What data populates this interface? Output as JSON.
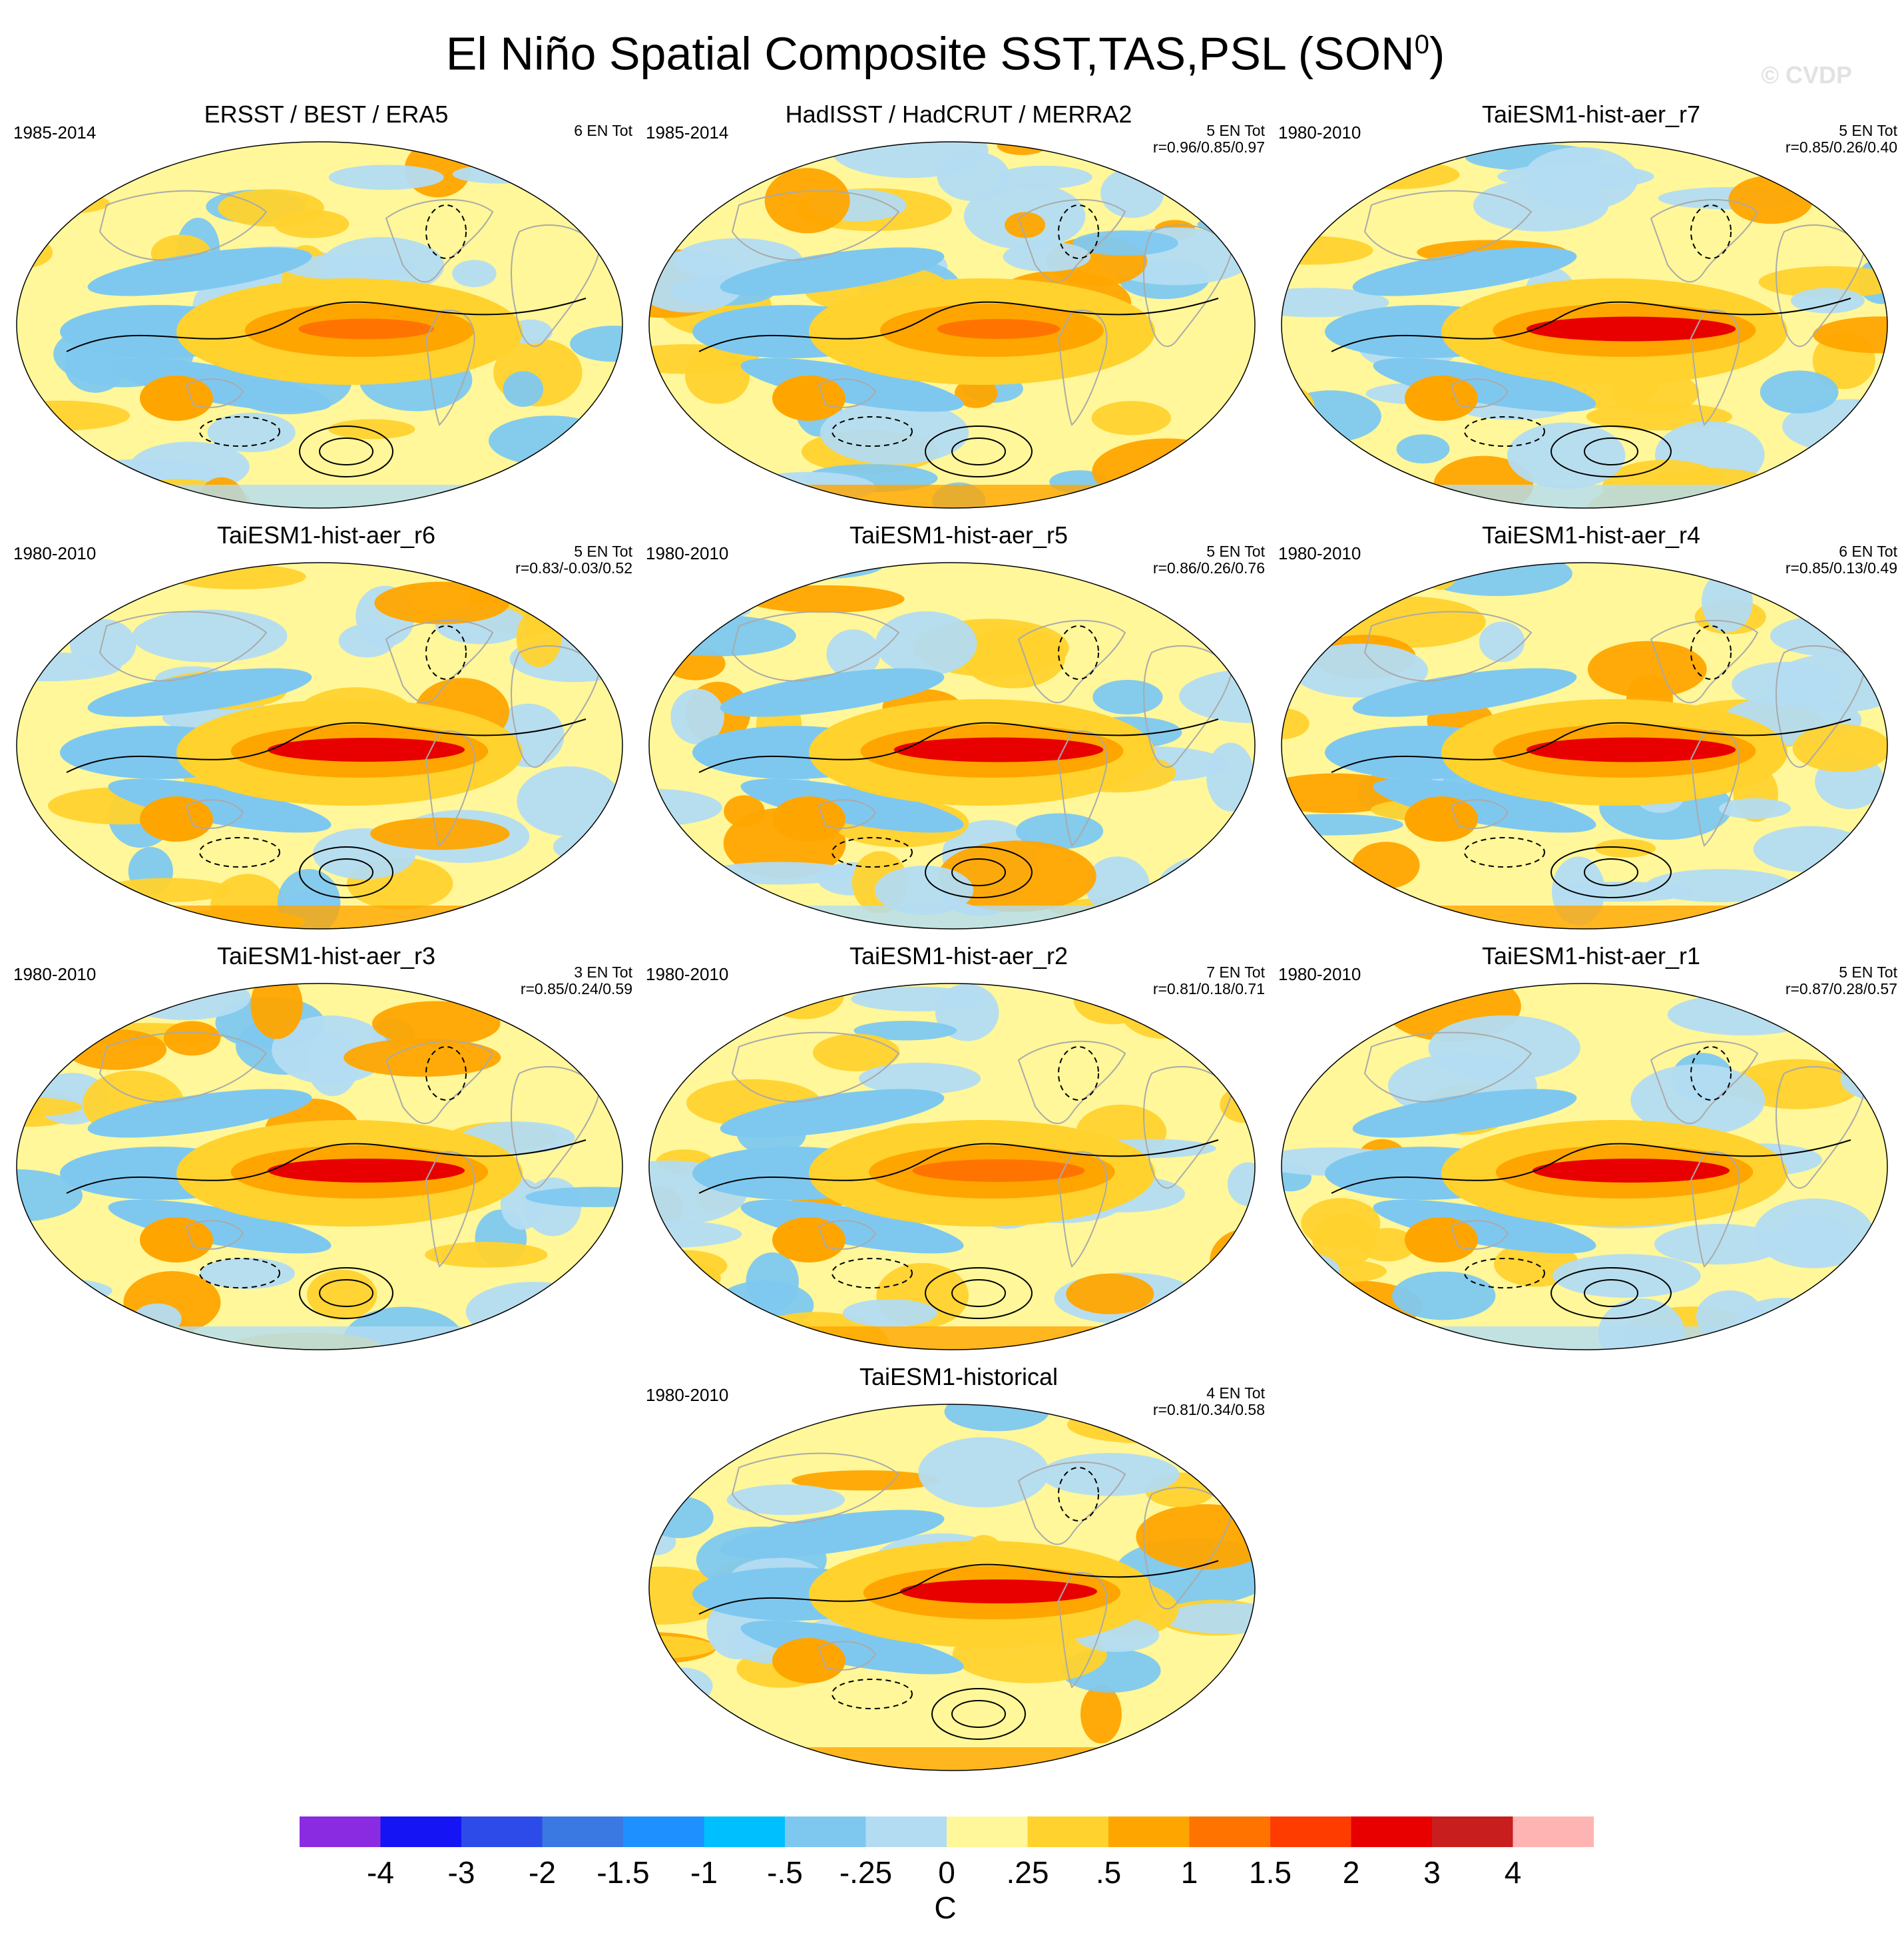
{
  "title": {
    "main": "El Niño Spatial Composite SST,TAS,PSL (SON",
    "sup": "0",
    "close": ")"
  },
  "watermark": "© CVDP",
  "chart_data": {
    "type": "heatmap",
    "title": "El Niño Spatial Composite SST,TAS,PSL (SON0)",
    "panels": [
      {
        "title": "ERSST / BEST / ERA5",
        "period": "1985-2014",
        "count": "6 EN Tot",
        "corr": "",
        "nino_strength": 0.55,
        "pattern": 0
      },
      {
        "title": "HadISST / HadCRUT / MERRA2",
        "period": "1985-2014",
        "count": "5 EN Tot",
        "corr": "r=0.96/0.85/0.97",
        "nino_strength": 0.5,
        "pattern": 1
      },
      {
        "title": "TaiESM1-hist-aer_r7",
        "period": "1980-2010",
        "count": "5 EN Tot",
        "corr": "r=0.85/0.26/0.40",
        "nino_strength": 0.85,
        "pattern": 2
      },
      {
        "title": "TaiESM1-hist-aer_r6",
        "period": "1980-2010",
        "count": "5 EN Tot",
        "corr": "r=0.83/-0.03/0.52",
        "nino_strength": 0.8,
        "pattern": 3
      },
      {
        "title": "TaiESM1-hist-aer_r5",
        "period": "1980-2010",
        "count": "5 EN Tot",
        "corr": "r=0.86/0.26/0.76",
        "nino_strength": 0.85,
        "pattern": 4
      },
      {
        "title": "TaiESM1-hist-aer_r4",
        "period": "1980-2010",
        "count": "6 EN Tot",
        "corr": "r=0.85/0.13/0.49",
        "nino_strength": 0.85,
        "pattern": 5
      },
      {
        "title": "TaiESM1-hist-aer_r3",
        "period": "1980-2010",
        "count": "3 EN Tot",
        "corr": "r=0.85/0.24/0.59",
        "nino_strength": 0.8,
        "pattern": 6
      },
      {
        "title": "TaiESM1-hist-aer_r2",
        "period": "1980-2010",
        "count": "7 EN Tot",
        "corr": "r=0.81/0.18/0.71",
        "nino_strength": 0.7,
        "pattern": 7
      },
      {
        "title": "TaiESM1-hist-aer_r1",
        "period": "1980-2010",
        "count": "5 EN Tot",
        "corr": "r=0.87/0.28/0.57",
        "nino_strength": 0.8,
        "pattern": 8
      },
      {
        "title": "TaiESM1-historical",
        "period": "1980-2010",
        "count": "4 EN Tot",
        "corr": "r=0.81/0.34/0.58",
        "nino_strength": 0.8,
        "pattern": 9
      }
    ],
    "colorbar": {
      "units": "C",
      "labels": [
        "-4",
        "-3",
        "-2",
        "-1.5",
        "-1",
        "-.5",
        "-.25",
        "0",
        ".25",
        ".5",
        "1",
        "1.5",
        "2",
        "3",
        "4"
      ],
      "colors": [
        "#8a2be2",
        "#1414f5",
        "#2d4be8",
        "#3a78e2",
        "#1e90ff",
        "#00bfff",
        "#7ec8f0",
        "#b3dcf2",
        "#fff799",
        "#ffd22e",
        "#ffa500",
        "#ff7400",
        "#ff3c00",
        "#e80000",
        "#c81e1e",
        "#ffb4b4"
      ]
    }
  }
}
